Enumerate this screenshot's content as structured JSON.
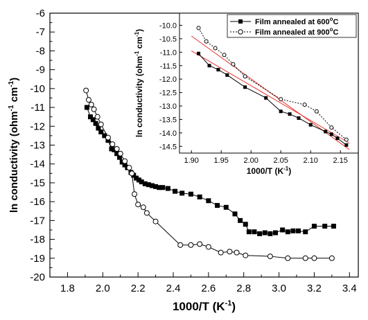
{
  "chart_data": [
    {
      "type": "line",
      "xlabel": "1000/T (K",
      "xlabel_sup": "-1",
      "xlabel_end": ")",
      "ylabel": "ln conductivity (ohm",
      "ylabel_sup1": "-1",
      "ylabel_mid": " cm",
      "ylabel_sup2": "-1",
      "ylabel_end": ")",
      "xlim": [
        1.7,
        3.45
      ],
      "ylim": [
        -20,
        -6
      ],
      "xticks": [
        1.8,
        2.0,
        2.2,
        2.4,
        2.6,
        2.8,
        3.0,
        3.2,
        3.4
      ],
      "xtick_labels": [
        "1.8",
        "2.0",
        "2.2",
        "2.4",
        "2.6",
        "2.8",
        "3.0",
        "3.2",
        "3.4"
      ],
      "yticks": [
        -6,
        -7,
        -8,
        -9,
        -10,
        -11,
        -12,
        -13,
        -14,
        -15,
        -16,
        -17,
        -18,
        -19,
        -20
      ],
      "ytick_labels": [
        "-6",
        "-7",
        "-8",
        "-9",
        "-10",
        "-11",
        "-12",
        "-13",
        "-14",
        "-15",
        "-16",
        "-17",
        "-18",
        "-19",
        "-20"
      ],
      "grid": false,
      "series": [
        {
          "marker": "filled-square",
          "color": "#000000",
          "points": [
            [
              1.91,
              -11.0
            ],
            [
              1.93,
              -11.5
            ],
            [
              1.945,
              -11.65
            ],
            [
              1.96,
              -11.85
            ],
            [
              1.975,
              -12.1
            ],
            [
              1.99,
              -12.3
            ],
            [
              2.01,
              -12.5
            ],
            [
              2.03,
              -12.75
            ],
            [
              2.05,
              -13.2
            ],
            [
              2.065,
              -13.25
            ],
            [
              2.08,
              -13.45
            ],
            [
              2.095,
              -13.65
            ],
            [
              2.11,
              -13.9
            ],
            [
              2.125,
              -14.05
            ],
            [
              2.14,
              -14.2
            ],
            [
              2.16,
              -14.45
            ],
            [
              2.175,
              -14.6
            ],
            [
              2.19,
              -14.75
            ],
            [
              2.205,
              -14.85
            ],
            [
              2.22,
              -14.95
            ],
            [
              2.24,
              -15.05
            ],
            [
              2.26,
              -15.1
            ],
            [
              2.28,
              -15.15
            ],
            [
              2.3,
              -15.2
            ],
            [
              2.32,
              -15.25
            ],
            [
              2.34,
              -15.25
            ],
            [
              2.37,
              -15.3
            ],
            [
              2.41,
              -15.45
            ],
            [
              2.45,
              -15.55
            ],
            [
              2.5,
              -15.6
            ],
            [
              2.55,
              -15.75
            ],
            [
              2.6,
              -15.95
            ],
            [
              2.65,
              -16.2
            ],
            [
              2.7,
              -16.3
            ],
            [
              2.75,
              -16.65
            ],
            [
              2.78,
              -17.0
            ],
            [
              2.81,
              -17.2
            ],
            [
              2.83,
              -17.6
            ],
            [
              2.86,
              -17.6
            ],
            [
              2.89,
              -17.7
            ],
            [
              2.92,
              -17.65
            ],
            [
              2.95,
              -17.7
            ],
            [
              2.98,
              -17.65
            ],
            [
              3.02,
              -17.5
            ],
            [
              3.05,
              -17.6
            ],
            [
              3.08,
              -17.55
            ],
            [
              3.11,
              -17.55
            ],
            [
              3.15,
              -17.6
            ],
            [
              3.2,
              -17.3
            ],
            [
              3.26,
              -17.3
            ],
            [
              3.31,
              -17.3
            ]
          ]
        },
        {
          "marker": "open-circle",
          "color": "#000000",
          "points": [
            [
              1.905,
              -10.1
            ],
            [
              1.92,
              -10.6
            ],
            [
              1.935,
              -10.85
            ],
            [
              1.95,
              -11.1
            ],
            [
              1.97,
              -11.5
            ],
            [
              1.99,
              -11.9
            ],
            [
              2.03,
              -12.6
            ],
            [
              2.055,
              -12.95
            ],
            [
              2.08,
              -13.2
            ],
            [
              2.1,
              -13.45
            ],
            [
              2.125,
              -13.85
            ],
            [
              2.15,
              -14.2
            ],
            [
              2.165,
              -14.5
            ],
            [
              2.18,
              -15.6
            ],
            [
              2.2,
              -16.15
            ],
            [
              2.23,
              -16.3
            ],
            [
              2.25,
              -16.6
            ],
            [
              2.3,
              -17.05
            ],
            [
              2.44,
              -18.3
            ],
            [
              2.5,
              -18.3
            ],
            [
              2.55,
              -18.25
            ],
            [
              2.6,
              -18.4
            ],
            [
              2.67,
              -18.7
            ],
            [
              2.72,
              -18.65
            ],
            [
              2.76,
              -18.7
            ],
            [
              2.81,
              -18.85
            ],
            [
              2.95,
              -18.9
            ],
            [
              3.05,
              -19.0
            ],
            [
              3.15,
              -19.0
            ],
            [
              3.2,
              -19.0
            ],
            [
              3.3,
              -19.0
            ]
          ]
        }
      ]
    },
    {
      "type": "line",
      "inset": true,
      "xlabel": "1000/T (K",
      "xlabel_sup": "-1",
      "xlabel_end": ")",
      "ylabel": "ln conductivity (ohm",
      "ylabel_sup1": "-1",
      "ylabel_mid": " cm",
      "ylabel_sup2": "-1",
      "ylabel_end": ")",
      "xlim": [
        1.88,
        2.18
      ],
      "ylim": [
        -14.75,
        -9.55
      ],
      "xticks": [
        1.9,
        1.95,
        2.0,
        2.05,
        2.1,
        2.15
      ],
      "xtick_labels": [
        "1.90",
        "1.95",
        "2.00",
        "2.05",
        "2.10",
        "2.15"
      ],
      "yticks": [
        -10.0,
        -10.5,
        -11.0,
        -11.5,
        -12.0,
        -12.5,
        -13.0,
        -13.5,
        -14.0,
        -14.5
      ],
      "ytick_labels": [
        "-10.0",
        "-10.5",
        "-11.0",
        "-11.5",
        "-12.0",
        "-12.5",
        "-13.0",
        "-13.5",
        "-14.0",
        "-14.5"
      ],
      "legend": {
        "placement": "top-right",
        "entries": [
          {
            "text": "Film annealed at 600",
            "sup": "o",
            "tail": "C"
          },
          {
            "text": "Film annealed at 900",
            "sup": "o",
            "tail": "C"
          }
        ]
      },
      "series": [
        {
          "marker": "filled-square",
          "line_style": "solid",
          "color": "#000000",
          "points": [
            [
              1.912,
              -11.05
            ],
            [
              1.93,
              -11.5
            ],
            [
              1.945,
              -11.65
            ],
            [
              1.96,
              -11.85
            ],
            [
              1.99,
              -12.3
            ],
            [
              2.025,
              -12.7
            ],
            [
              2.05,
              -13.2
            ],
            [
              2.065,
              -13.3
            ],
            [
              2.08,
              -13.45
            ],
            [
              2.1,
              -13.7
            ],
            [
              2.125,
              -13.95
            ],
            [
              2.135,
              -14.05
            ],
            [
              2.145,
              -14.2
            ],
            [
              2.16,
              -14.45
            ]
          ],
          "fit_line": [
            [
              1.9,
              -10.95
            ],
            [
              2.165,
              -14.38
            ]
          ],
          "fit_color": "#e8302a"
        },
        {
          "marker": "open-circle",
          "line_style": "dotted",
          "color": "#000000",
          "points": [
            [
              1.912,
              -10.1
            ],
            [
              1.925,
              -10.6
            ],
            [
              1.94,
              -10.85
            ],
            [
              1.955,
              -11.1
            ],
            [
              1.97,
              -11.45
            ],
            [
              1.99,
              -11.9
            ],
            [
              2.05,
              -12.75
            ],
            [
              2.09,
              -12.95
            ],
            [
              2.11,
              -13.2
            ],
            [
              2.135,
              -13.8
            ],
            [
              2.16,
              -14.25
            ]
          ],
          "fit_line": [
            [
              1.9,
              -10.4
            ],
            [
              2.165,
              -14.62
            ]
          ],
          "fit_color": "#e8302a"
        }
      ]
    }
  ]
}
